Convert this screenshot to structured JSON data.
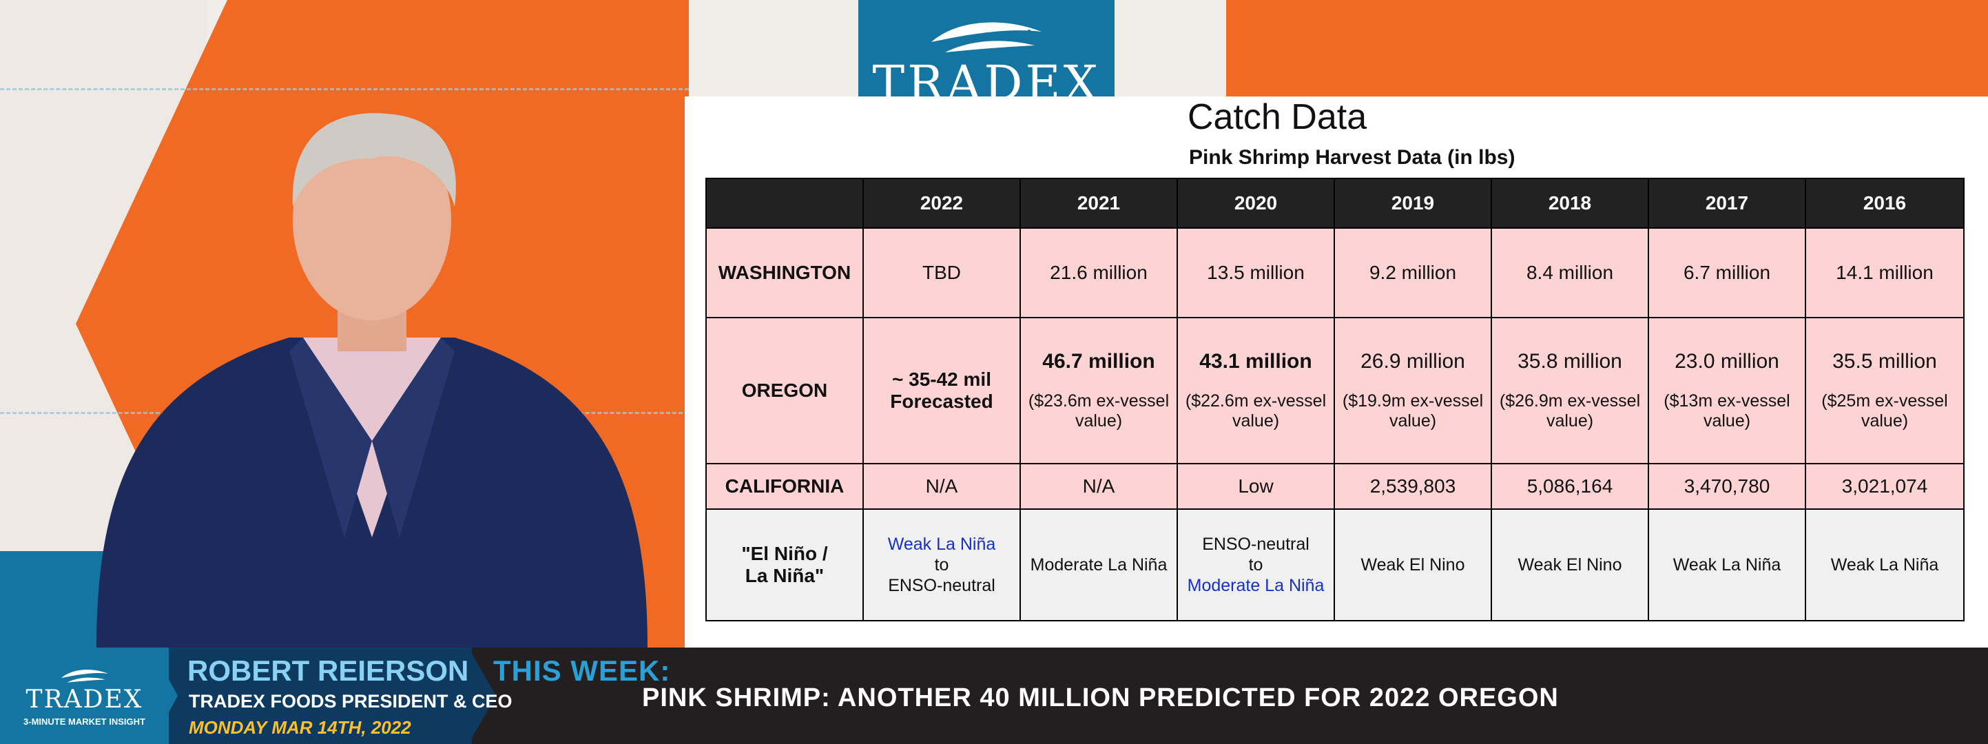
{
  "brand": {
    "name": "TRADEX",
    "tagline": "3-MINUTE MARKET INSIGHT"
  },
  "title": "Catch Data",
  "subtitle": "Pink Shrimp Harvest Data (in lbs)",
  "table": {
    "header": [
      "",
      "2022",
      "2021",
      "2020",
      "2019",
      "2018",
      "2017",
      "2016"
    ],
    "washington": {
      "label": "WASHINGTON",
      "values": [
        "TBD",
        "21.6 million",
        "13.5 million",
        "9.2 million",
        "8.4 million",
        "6.7 million",
        "14.1 million"
      ]
    },
    "oregon": {
      "label": "OREGON",
      "forecast_line1": "~ 35-42 mil",
      "forecast_line2": "Forecasted",
      "main": [
        "46.7 million",
        "43.1 million",
        "26.9 million",
        "35.8 million",
        "23.0 million",
        "35.5 million"
      ],
      "sub": [
        "($23.6m ex-vessel value)",
        "($22.6m ex-vessel value)",
        "($19.9m ex-vessel value)",
        "($26.9m ex-vessel value)",
        "($13m ex-vessel value)",
        "($25m ex-vessel value)"
      ]
    },
    "california": {
      "label": "CALIFORNIA",
      "values": [
        "N/A",
        "N/A",
        "Low",
        "2,539,803",
        "5,086,164",
        "3,470,780",
        "3,021,074"
      ]
    },
    "enso": {
      "label_line1": "\"El Niño /",
      "label_line2": "La Niña\"",
      "y2022": {
        "line1": "Weak La Niña",
        "line2": "to",
        "line3": "ENSO-neutral"
      },
      "y2021": "Moderate La Niña",
      "y2020": {
        "line1": "ENSO-neutral",
        "line2": "to",
        "line3": "Moderate La Niña"
      },
      "y2019": "Weak El Nino",
      "y2018": "Weak El Nino",
      "y2017": "Weak La Niña",
      "y2016": "Weak La Niña"
    }
  },
  "lower_third": {
    "name": "ROBERT REIERSON",
    "role": "TRADEX FOODS PRESIDENT & CEO",
    "date": "MONDAY MAR 14TH, 2022",
    "this_week_label": "THIS WEEK:",
    "headline": "PINK SHRIMP: ANOTHER 40 MILLION PREDICTED FOR 2022 OREGON"
  },
  "colors": {
    "orange": "#f06a24",
    "teal": "#1474a2",
    "navy": "#0f3a5f",
    "pink_cell": "#fdd3d3",
    "la_nina_blue": "#1730c8",
    "el_nino_red": "#d21a1a"
  }
}
